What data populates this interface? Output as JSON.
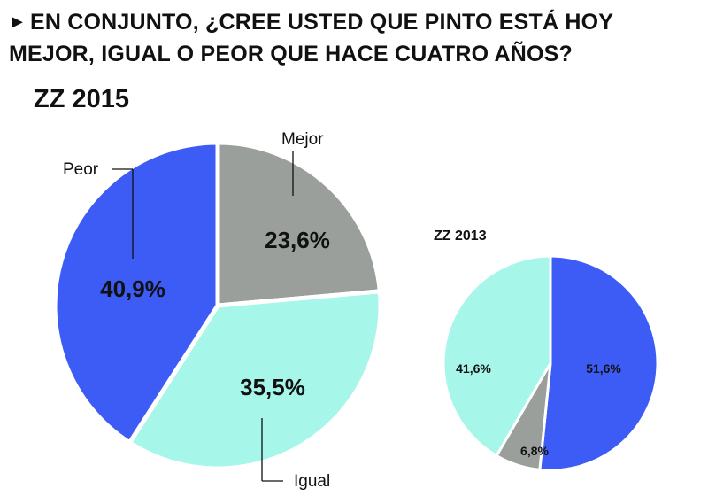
{
  "headline": {
    "marker": "►",
    "line1": "EN CONJUNTO, ¿CREE USTED QUE PINTO ESTÁ HOY",
    "line2": "MEJOR, IGUAL O PEOR QUE HACE CUATRO AÑOS?"
  },
  "colors": {
    "peor": "#3d5cf5",
    "mejor": "#9a9f9b",
    "igual": "#a6f6ea",
    "separator": "#ffffff",
    "text": "#111111"
  },
  "chart_data": [
    {
      "type": "pie",
      "title": "ZZ 2015",
      "slices": [
        {
          "key": "mejor",
          "label": "Mejor",
          "value": 23.6,
          "value_label": "23,6%"
        },
        {
          "key": "igual",
          "label": "Igual",
          "value": 35.5,
          "value_label": "35,5%"
        },
        {
          "key": "peor",
          "label": "Peor",
          "value": 40.9,
          "value_label": "40,9%"
        }
      ]
    },
    {
      "type": "pie",
      "title": "ZZ 2013",
      "slices": [
        {
          "key": "peor",
          "label": "Peor",
          "value": 51.6,
          "value_label": "51,6%"
        },
        {
          "key": "mejor",
          "label": "Mejor",
          "value": 6.8,
          "value_label": "6,8%"
        },
        {
          "key": "igual",
          "label": "Igual",
          "value": 41.6,
          "value_label": "41,6%"
        }
      ]
    }
  ]
}
